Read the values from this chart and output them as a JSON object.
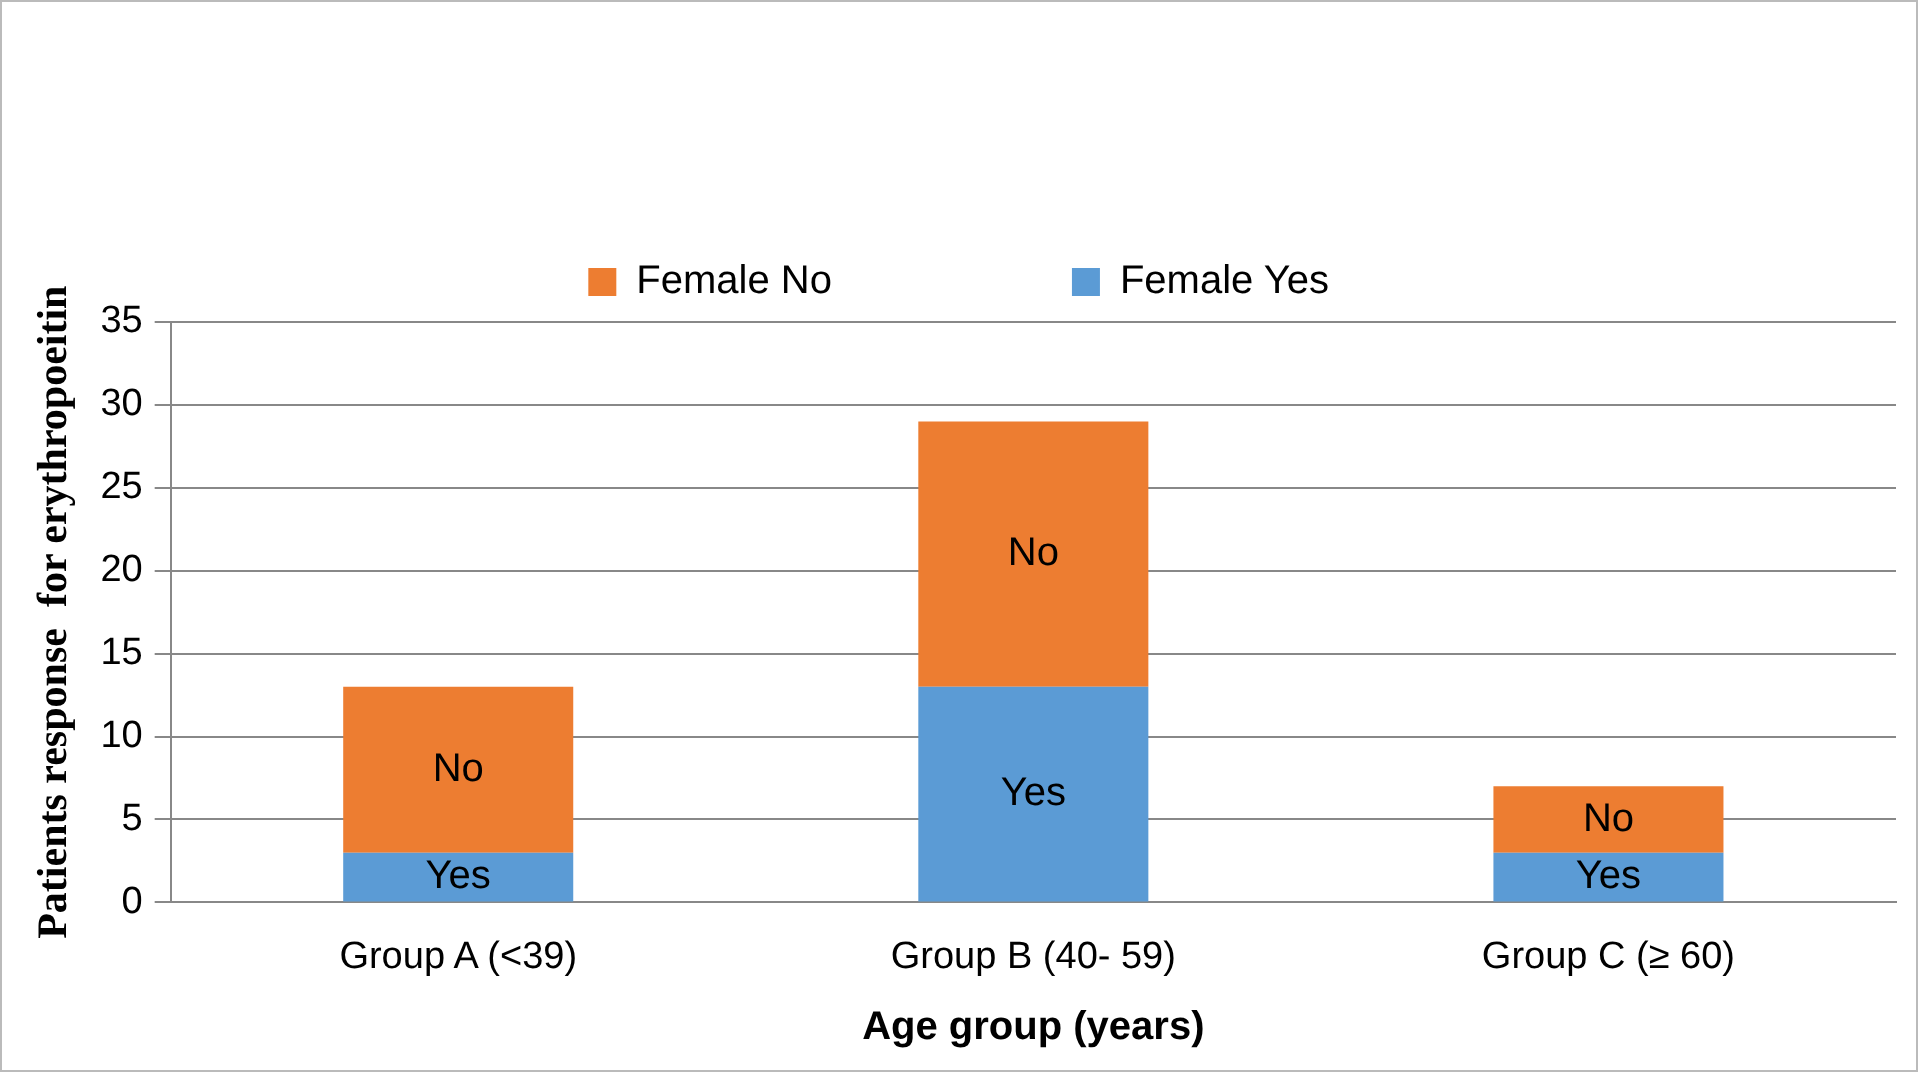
{
  "chart_data": {
    "type": "bar",
    "stacked": true,
    "xlabel": "Age group (years)",
    "ylabel": "Patients response  for erythropoeitin",
    "categories": [
      "Group A (<39)",
      "Group B (40- 59)",
      "Group C (≥ 60)"
    ],
    "series": [
      {
        "name": "Female Yes",
        "color": "#5b9bd5",
        "values": [
          3,
          13,
          3
        ],
        "value_labels": [
          "Yes",
          "Yes",
          "Yes"
        ]
      },
      {
        "name": "Female No",
        "color": "#ed7d31",
        "values": [
          10,
          16,
          4
        ],
        "value_labels": [
          "No",
          "No",
          "No"
        ]
      }
    ],
    "ylim": [
      0,
      35
    ],
    "yticks": [
      0,
      5,
      10,
      15,
      20,
      25,
      30,
      35
    ],
    "grid": "y",
    "legend": "top"
  }
}
